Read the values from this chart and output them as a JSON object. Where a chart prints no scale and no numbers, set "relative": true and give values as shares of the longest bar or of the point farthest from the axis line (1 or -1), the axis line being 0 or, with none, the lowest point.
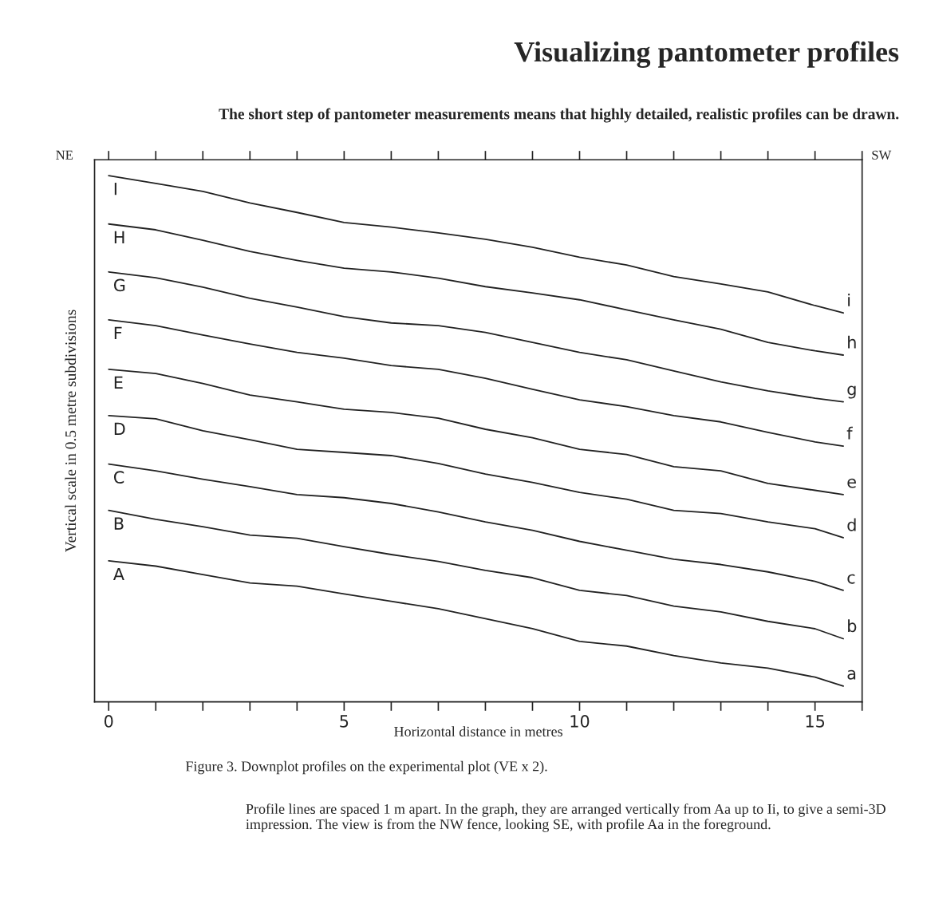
{
  "chart_data": {
    "type": "line",
    "relative": true,
    "title": "Visualizing pantometer profiles",
    "subtitle": "The short step of pantometer measurements means that highly detailed, realistic profiles can be drawn.",
    "xlabel": "Horizontal distance in metres",
    "ylabel": "Vertical scale in 0.5 metre subdivisions",
    "x": [
      0,
      1,
      2,
      3,
      4,
      5,
      6,
      7,
      8,
      9,
      10,
      11,
      12,
      13,
      14,
      15,
      15.6
    ],
    "xlim": [
      -0.3,
      16
    ],
    "xticks": [
      0,
      {
        "value": 1,
        "label": null
      },
      {
        "value": 2,
        "label": null
      },
      {
        "value": 3,
        "label": null
      },
      {
        "value": 4,
        "label": null
      },
      5,
      {
        "value": 6,
        "label": null
      },
      {
        "value": 7,
        "label": null
      },
      {
        "value": 8,
        "label": null
      },
      {
        "value": 9,
        "label": null
      },
      10,
      {
        "value": 11,
        "label": null
      },
      {
        "value": 12,
        "label": null
      },
      {
        "value": 13,
        "label": null
      },
      {
        "value": 14,
        "label": null
      },
      15,
      {
        "value": 16,
        "label": null
      }
    ],
    "grid": false,
    "legend": false,
    "marker": "none",
    "line_style": "solid",
    "series": [
      {
        "name": "I",
        "color": "#222222",
        "values": [
          1.0,
          0.985,
          0.97,
          0.948,
          0.93,
          0.911,
          0.902,
          0.891,
          0.879,
          0.864,
          0.845,
          0.83,
          0.808,
          0.794,
          0.779,
          0.753,
          0.739
        ]
      },
      {
        "name": "H",
        "color": "#222222",
        "values": [
          0.908,
          0.897,
          0.877,
          0.856,
          0.839,
          0.824,
          0.817,
          0.805,
          0.789,
          0.777,
          0.764,
          0.745,
          0.726,
          0.708,
          0.683,
          0.667,
          0.659
        ]
      },
      {
        "name": "G",
        "color": "#222222",
        "values": [
          0.817,
          0.806,
          0.788,
          0.767,
          0.75,
          0.732,
          0.72,
          0.715,
          0.702,
          0.683,
          0.664,
          0.65,
          0.629,
          0.608,
          0.591,
          0.577,
          0.57
        ]
      },
      {
        "name": "F",
        "color": "#222222",
        "values": [
          0.726,
          0.715,
          0.697,
          0.68,
          0.664,
          0.653,
          0.639,
          0.632,
          0.615,
          0.594,
          0.574,
          0.561,
          0.544,
          0.532,
          0.512,
          0.494,
          0.486
        ]
      },
      {
        "name": "E",
        "color": "#222222",
        "values": [
          0.632,
          0.624,
          0.605,
          0.583,
          0.57,
          0.556,
          0.55,
          0.539,
          0.518,
          0.502,
          0.48,
          0.47,
          0.447,
          0.439,
          0.415,
          0.402,
          0.394
        ]
      },
      {
        "name": "D",
        "color": "#222222",
        "values": [
          0.544,
          0.538,
          0.515,
          0.498,
          0.48,
          0.474,
          0.468,
          0.453,
          0.433,
          0.417,
          0.398,
          0.385,
          0.364,
          0.358,
          0.342,
          0.329,
          0.312
        ]
      },
      {
        "name": "C",
        "color": "#222222",
        "values": [
          0.452,
          0.439,
          0.423,
          0.409,
          0.394,
          0.388,
          0.377,
          0.361,
          0.342,
          0.326,
          0.305,
          0.288,
          0.271,
          0.261,
          0.247,
          0.229,
          0.212
        ]
      },
      {
        "name": "B",
        "color": "#222222",
        "values": [
          0.364,
          0.347,
          0.333,
          0.317,
          0.311,
          0.295,
          0.28,
          0.267,
          0.25,
          0.236,
          0.212,
          0.202,
          0.182,
          0.171,
          0.153,
          0.139,
          0.12
        ]
      },
      {
        "name": "A",
        "color": "#222222",
        "values": [
          0.268,
          0.258,
          0.242,
          0.226,
          0.22,
          0.205,
          0.191,
          0.177,
          0.158,
          0.139,
          0.115,
          0.106,
          0.088,
          0.074,
          0.064,
          0.047,
          0.03
        ]
      }
    ],
    "annotations": [
      "i",
      "h",
      "g",
      "f",
      "e",
      "d",
      "c",
      "b",
      "a",
      "NE",
      "SW",
      "Figure 3. Downplot profiles on the experimental plot (VE x 2).",
      "Profile lines are spaced 1 m apart. In the graph, they are arranged vertically from Aa up to Ii, to give a semi-3D impression. The view is from the NW fence, looking SE, with profile Aa in the foreground."
    ]
  }
}
